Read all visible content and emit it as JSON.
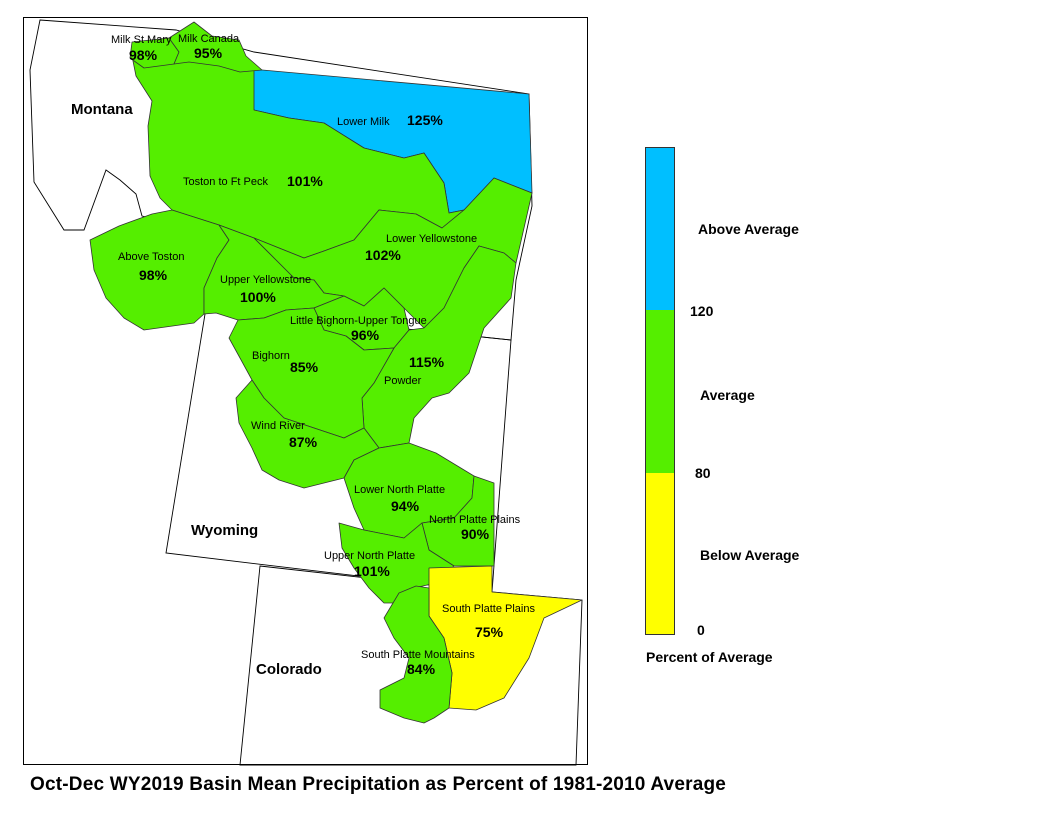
{
  "colors": {
    "above": "#00BFFF",
    "average": "#55EE00",
    "below": "#FFFF00",
    "state_fill": "#FFFFFF",
    "outline": "#000000"
  },
  "states": {
    "montana": "Montana",
    "wyoming": "Wyoming",
    "colorado": "Colorado"
  },
  "basins": [
    {
      "id": "milk-st-mary",
      "name": "Milk St Mary",
      "pct": "98%",
      "category": "average"
    },
    {
      "id": "milk-canada",
      "name": "Milk Canada",
      "pct": "95%",
      "category": "average"
    },
    {
      "id": "lower-milk",
      "name": "Lower Milk",
      "pct": "125%",
      "category": "above"
    },
    {
      "id": "toston-ft-peck",
      "name": "Toston to Ft Peck",
      "pct": "101%",
      "category": "average"
    },
    {
      "id": "lower-yellowstone",
      "name": "Lower Yellowstone",
      "pct": "102%",
      "category": "average"
    },
    {
      "id": "above-toston",
      "name": "Above Toston",
      "pct": "98%",
      "category": "average"
    },
    {
      "id": "upper-yellowstone",
      "name": "Upper Yellowstone",
      "pct": "100%",
      "category": "average"
    },
    {
      "id": "little-bighorn-upper-tongue",
      "name": "Little Bighorn-Upper Tongue",
      "pct": "96%",
      "category": "average"
    },
    {
      "id": "bighorn",
      "name": "Bighorn",
      "pct": "85%",
      "category": "average"
    },
    {
      "id": "powder",
      "name": "Powder",
      "pct": "115%",
      "category": "average"
    },
    {
      "id": "wind-river",
      "name": "Wind River",
      "pct": "87%",
      "category": "average"
    },
    {
      "id": "lower-north-platte",
      "name": "Lower North Platte",
      "pct": "94%",
      "category": "average"
    },
    {
      "id": "north-platte-plains",
      "name": "North Platte Plains",
      "pct": "90%",
      "category": "average"
    },
    {
      "id": "upper-north-platte",
      "name": "Upper North Platte",
      "pct": "101%",
      "category": "average"
    },
    {
      "id": "south-platte-plains",
      "name": "South Platte Plains",
      "pct": "75%",
      "category": "below"
    },
    {
      "id": "south-platte-mountains",
      "name": "South Platte Mountains",
      "pct": "84%",
      "category": "average"
    }
  ],
  "legend": {
    "title": "Percent of Average",
    "classes": [
      {
        "label": "Above Average",
        "category": "above"
      },
      {
        "label": "Average",
        "category": "average"
      },
      {
        "label": "Below Average",
        "category": "below"
      }
    ],
    "breaks": [
      "120",
      "80",
      "0"
    ]
  },
  "caption": "Oct-Dec WY2019 Basin Mean Precipitation as Percent of 1981-2010 Average"
}
